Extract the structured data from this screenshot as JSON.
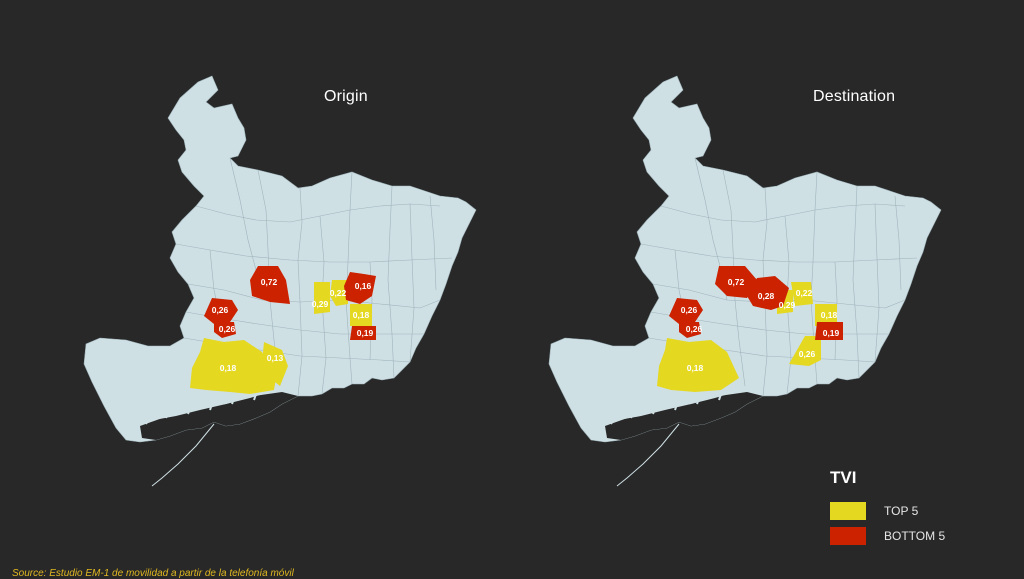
{
  "maps": [
    {
      "title": "Origin",
      "top5": [
        {
          "label": "0,22"
        },
        {
          "label": "0,29"
        },
        {
          "label": "0,18"
        },
        {
          "label": "0,18"
        },
        {
          "label": "0,13"
        }
      ],
      "bottom5": [
        {
          "label": "0,72"
        },
        {
          "label": "0,16"
        },
        {
          "label": "0,26"
        },
        {
          "label": "0,26"
        },
        {
          "label": "0,19"
        }
      ]
    },
    {
      "title": "Destination",
      "top5": [
        {
          "label": "0,22"
        },
        {
          "label": "0,29"
        },
        {
          "label": "0,18"
        },
        {
          "label": "0,26"
        },
        {
          "label": "0,18"
        }
      ],
      "bottom5": [
        {
          "label": "0,72"
        },
        {
          "label": "0,28"
        },
        {
          "label": "0,26"
        },
        {
          "label": "0,26"
        },
        {
          "label": "0,19"
        }
      ]
    }
  ],
  "legend": {
    "title": "TVI",
    "items": [
      {
        "label": "TOP 5",
        "color": "#e5d820"
      },
      {
        "label": "BOTTOM 5",
        "color": "#cc2200"
      }
    ]
  },
  "colors": {
    "land": "#cfe0e5",
    "top": "#e5d820",
    "bottom": "#cc2200",
    "background": "#282828"
  },
  "source": "Source: Estudio EM-1 de movilidad a partir de la telefonía móvil"
}
